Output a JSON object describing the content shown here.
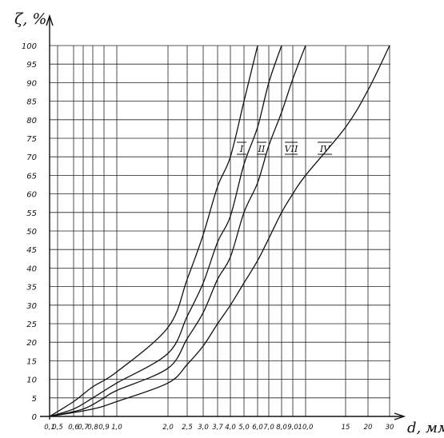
{
  "chart_data": {
    "type": "line",
    "ylabel": "ζ, %",
    "xlabel": "d, мм",
    "x_ticks": [
      "0,1",
      "0,5",
      "0,6",
      "0,7",
      "0,8",
      "0,9",
      "1,0",
      "2,0",
      "2,5",
      "3,0",
      "3,7",
      "4,0",
      "5,0",
      "6,0",
      "7,0",
      "8,0",
      "9,0",
      "10,0",
      "15",
      "20",
      "30"
    ],
    "y_ticks": [
      "0",
      "5",
      "10",
      "15",
      "20",
      "25",
      "30",
      "35",
      "40",
      "45",
      "50",
      "55",
      "60",
      "65",
      "70",
      "75",
      "80",
      "85",
      "90",
      "95",
      "100"
    ],
    "ylim": [
      0,
      100
    ],
    "grid": true,
    "series": [
      {
        "name": "I",
        "x": [
          "0,1",
          "0,6",
          "0,8",
          "1,0",
          "2,0",
          "2,5",
          "3,0",
          "3,7",
          "4,0",
          "5,0",
          "6,0"
        ],
        "y": [
          0,
          4,
          8,
          12,
          24,
          37,
          49,
          62,
          70,
          85,
          100
        ]
      },
      {
        "name": "II",
        "x": [
          "0,1",
          "0,6",
          "0,8",
          "1,0",
          "2,0",
          "2,5",
          "3,0",
          "3,7",
          "4,0",
          "5,0",
          "6,0",
          "7,0",
          "8,0"
        ],
        "y": [
          0,
          2,
          5,
          9,
          17,
          27,
          36,
          47,
          54,
          68,
          78,
          90,
          100
        ]
      },
      {
        "name": "VII",
        "x": [
          "0,1",
          "0,7",
          "0,9",
          "1,0",
          "2,0",
          "2,5",
          "3,0",
          "3,7",
          "4,0",
          "5,0",
          "6,0",
          "7,0",
          "8,0",
          "9,0",
          "10,0"
        ],
        "y": [
          0,
          2,
          5,
          7,
          13,
          21,
          28,
          37,
          43,
          55,
          63,
          73,
          82,
          91,
          100
        ]
      },
      {
        "name": "IV",
        "x": [
          "0,1",
          "0,8",
          "1,0",
          "2,0",
          "2,5",
          "3,0",
          "3,7",
          "4,0",
          "5,0",
          "6,0",
          "7,0",
          "8,0",
          "9,0",
          "10,0",
          "15",
          "20",
          "30"
        ],
        "y": [
          0,
          2,
          4,
          9,
          14,
          19,
          25,
          30,
          36,
          42,
          48,
          55,
          60,
          65,
          78,
          88,
          100
        ]
      }
    ]
  }
}
